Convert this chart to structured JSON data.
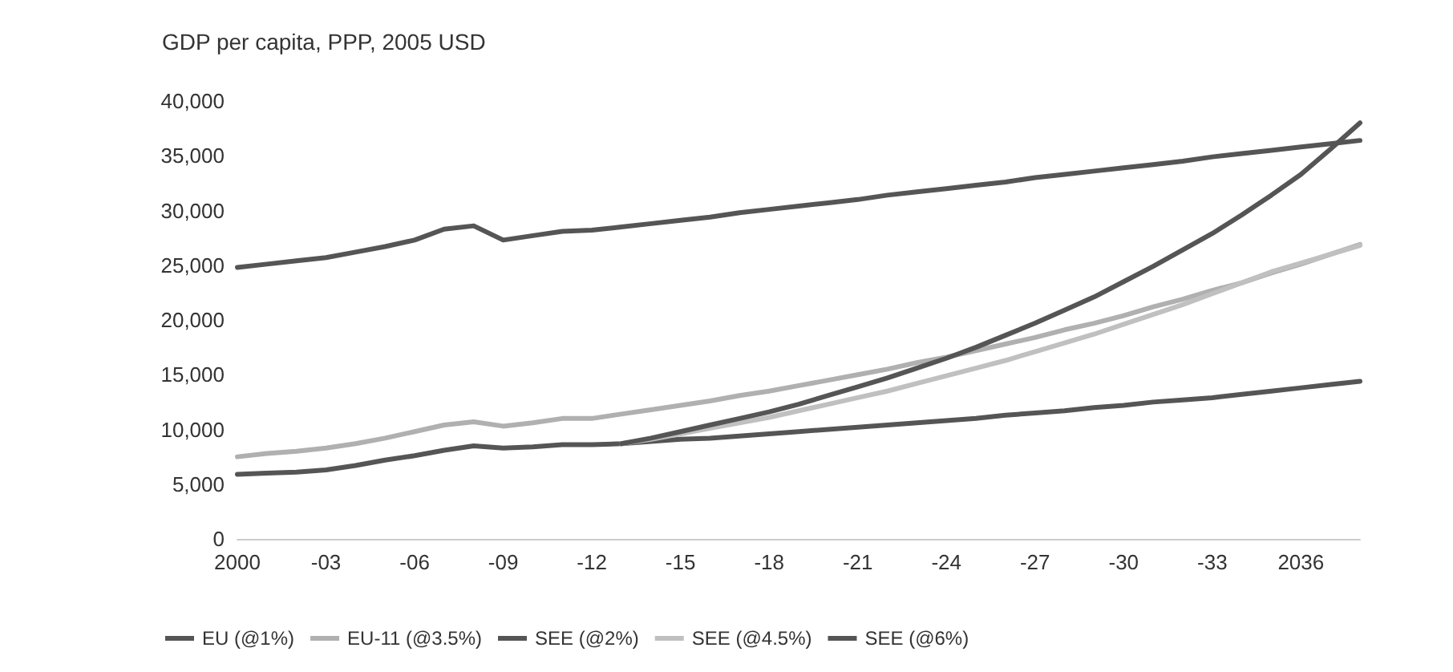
{
  "chart_data": {
    "type": "line",
    "title": "GDP per capita, PPP, 2005 USD",
    "categories": [
      "2000",
      null,
      null,
      "-03",
      null,
      null,
      "-06",
      null,
      null,
      "-09",
      null,
      null,
      "-12",
      null,
      null,
      "-15",
      null,
      null,
      "-18",
      null,
      null,
      "-21",
      null,
      null,
      "-24",
      null,
      null,
      "-27",
      null,
      null,
      "-30",
      null,
      null,
      "-33",
      null,
      null,
      "2036",
      null,
      null
    ],
    "ylim": [
      0,
      40000
    ],
    "yticks": [
      {
        "value": 0,
        "label": "0"
      },
      {
        "value": 5000,
        "label": "5,000"
      },
      {
        "value": 10000,
        "label": "10,000"
      },
      {
        "value": 15000,
        "label": "15,000"
      },
      {
        "value": 20000,
        "label": "20,000"
      },
      {
        "value": 25000,
        "label": "25,000"
      },
      {
        "value": 30000,
        "label": "30,000"
      },
      {
        "value": 35000,
        "label": "35,000"
      },
      {
        "value": 40000,
        "label": "40,000"
      }
    ],
    "grid": false,
    "legend": "bottom",
    "marker": "none",
    "line_style": "solid",
    "series": [
      {
        "name": "EU (@1%)",
        "color": "#555555",
        "values": [
          24800,
          25100,
          25400,
          25700,
          26200,
          26700,
          27300,
          28300,
          28600,
          27300,
          27700,
          28100,
          28200,
          28500,
          28800,
          29100,
          29400,
          29800,
          30100,
          30400,
          30700,
          31000,
          31400,
          31700,
          32000,
          32300,
          32600,
          33000,
          33300,
          33600,
          33900,
          34200,
          34500,
          34900,
          35200,
          35500,
          35800,
          36100,
          36400
        ]
      },
      {
        "name": "EU-11 (@3.5%)",
        "color": "#b0b0b0",
        "values": [
          7500,
          7800,
          8000,
          8300,
          8700,
          9200,
          9800,
          10400,
          10700,
          10300,
          10600,
          11000,
          11000,
          11400,
          11800,
          12200,
          12600,
          13100,
          13500,
          14000,
          14500,
          15000,
          15500,
          16100,
          16600,
          17200,
          17800,
          18400,
          19100,
          19700,
          20400,
          21200,
          21900,
          22700,
          23400,
          24300,
          25100,
          26000,
          26900
        ]
      },
      {
        "name": "SEE (@2%)",
        "color": "#555555",
        "values": [
          5900,
          6000,
          6100,
          6300,
          6700,
          7200,
          7600,
          8100,
          8500,
          8300,
          8400,
          8600,
          8600,
          8700,
          8900,
          9100,
          9200,
          9400,
          9600,
          9800,
          10000,
          10200,
          10400,
          10600,
          10800,
          11000,
          11300,
          11500,
          11700,
          12000,
          12200,
          12500,
          12700,
          12900,
          13200,
          13500,
          13800,
          14100,
          14400
        ]
      },
      {
        "name": "SEE (@4.5%)",
        "color": "#c0c0c0",
        "values": [
          null,
          null,
          null,
          null,
          null,
          null,
          null,
          null,
          null,
          null,
          null,
          null,
          null,
          8700,
          9100,
          9600,
          10100,
          10600,
          11100,
          11700,
          12300,
          12900,
          13500,
          14200,
          14900,
          15600,
          16300,
          17100,
          17900,
          18700,
          19600,
          20500,
          21400,
          22400,
          23400,
          24400,
          25200,
          26000,
          26800
        ]
      },
      {
        "name": "SEE (@6%)",
        "color": "#555555",
        "values": [
          null,
          null,
          null,
          null,
          null,
          null,
          null,
          null,
          null,
          null,
          null,
          null,
          null,
          8700,
          9200,
          9800,
          10400,
          11000,
          11600,
          12300,
          13100,
          13900,
          14700,
          15600,
          16500,
          17500,
          18600,
          19700,
          20900,
          22100,
          23500,
          24900,
          26400,
          27900,
          29600,
          31400,
          33300,
          35600,
          38000
        ]
      }
    ]
  }
}
